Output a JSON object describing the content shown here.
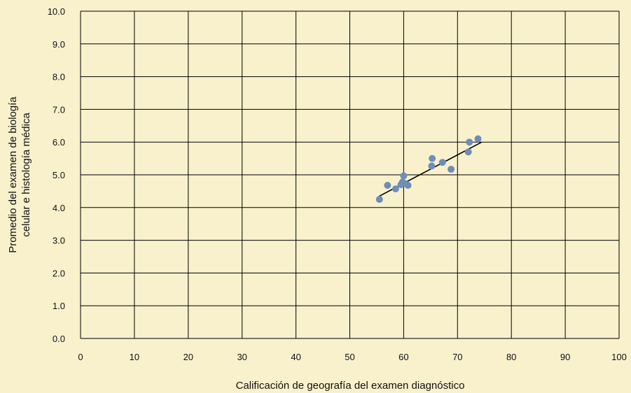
{
  "chart_data": {
    "type": "scatter",
    "title": "",
    "xlabel": "Calificación de geografía del examen diagnóstico",
    "ylabel_lines": [
      "Promedio del examen de biología",
      "celular e histología médica"
    ],
    "xlim": [
      0,
      100
    ],
    "ylim": [
      0,
      10
    ],
    "x_ticks": [
      0,
      10,
      20,
      30,
      40,
      50,
      60,
      70,
      80,
      90,
      100
    ],
    "y_ticks": [
      "0.0",
      "1.0",
      "2.0",
      "3.0",
      "4.0",
      "5.0",
      "6.0",
      "7.0",
      "8.0",
      "9.0",
      "10.0"
    ],
    "grid": true,
    "points": [
      {
        "x": 55.5,
        "y": 4.25
      },
      {
        "x": 57.0,
        "y": 4.68
      },
      {
        "x": 58.5,
        "y": 4.57
      },
      {
        "x": 59.5,
        "y": 4.7
      },
      {
        "x": 59.8,
        "y": 4.78
      },
      {
        "x": 60.0,
        "y": 4.97
      },
      {
        "x": 60.3,
        "y": 4.73
      },
      {
        "x": 60.8,
        "y": 4.68
      },
      {
        "x": 65.2,
        "y": 5.27
      },
      {
        "x": 65.3,
        "y": 5.5
      },
      {
        "x": 67.2,
        "y": 5.38
      },
      {
        "x": 68.8,
        "y": 5.17
      },
      {
        "x": 72.0,
        "y": 5.7
      },
      {
        "x": 72.2,
        "y": 6.0
      },
      {
        "x": 73.8,
        "y": 6.1
      }
    ],
    "trendline": {
      "x": [
        55.5,
        74.5
      ],
      "y": [
        4.35,
        6.0
      ]
    },
    "colors": {
      "background": "#f8f1cc",
      "point": "#6e8db8",
      "grid": "#000000",
      "trendline": "#000000"
    }
  }
}
